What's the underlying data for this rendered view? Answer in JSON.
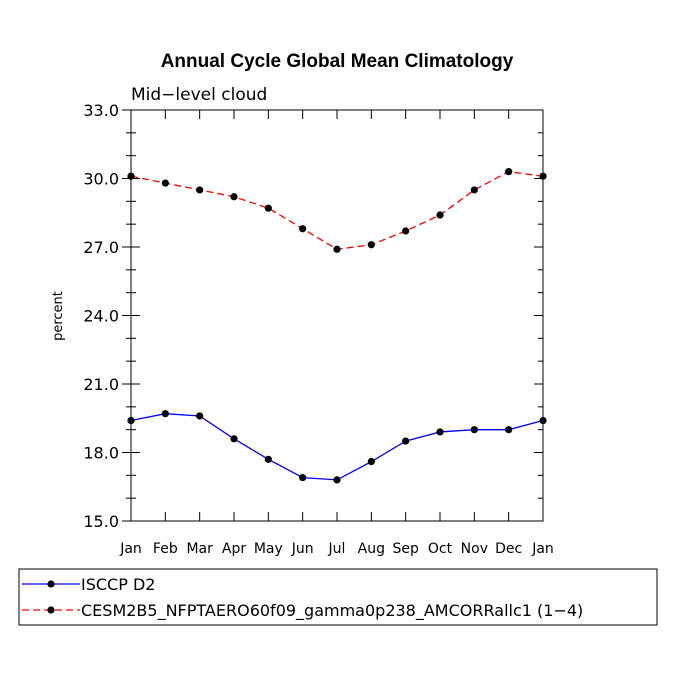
{
  "chart_data": {
    "type": "line",
    "title": "Annual Cycle Global Mean Climatology",
    "subtitle": "Mid−level cloud",
    "ylabel": "percent",
    "xlabel": "",
    "categories": [
      "Jan",
      "Feb",
      "Mar",
      "Apr",
      "May",
      "Jun",
      "Jul",
      "Aug",
      "Sep",
      "Oct",
      "Nov",
      "Dec",
      "Jan"
    ],
    "ylim": [
      15.0,
      33.0
    ],
    "yticks": [
      "15.0",
      "18.0",
      "21.0",
      "24.0",
      "27.0",
      "30.0",
      "33.0"
    ],
    "series": [
      {
        "name": "ISCCP D2",
        "color": "#0000ff",
        "dash": "solid",
        "values": [
          19.4,
          19.7,
          19.6,
          18.6,
          17.7,
          16.9,
          16.8,
          17.6,
          18.5,
          18.9,
          19.0,
          19.0,
          19.4
        ]
      },
      {
        "name": "CESM2B5_NFPTAERO60f09_gamma0p238_AMCORRallc1 (1−4)",
        "color": "#ff0000",
        "dash": "dashed",
        "values": [
          30.1,
          29.8,
          29.5,
          29.2,
          28.7,
          27.8,
          26.9,
          27.1,
          27.7,
          28.4,
          29.5,
          30.3,
          30.1
        ]
      }
    ],
    "legend_position": "bottom-left"
  }
}
